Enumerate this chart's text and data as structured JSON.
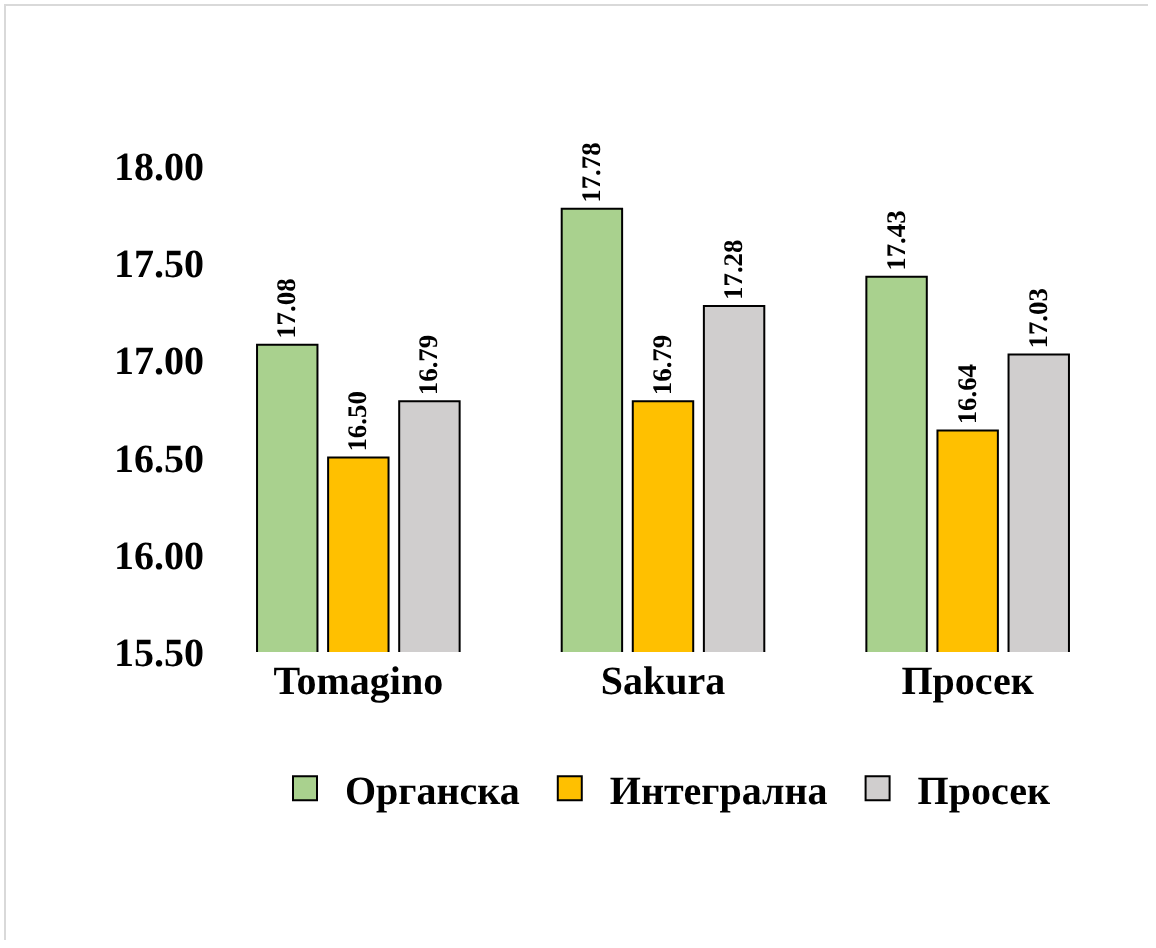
{
  "chart_data": {
    "type": "bar",
    "categories": [
      "Tomagino",
      "Sakura",
      "Просек"
    ],
    "series": [
      {
        "name": "Органска",
        "color": "#a9d18e",
        "values": [
          17.08,
          17.78,
          17.43
        ],
        "value_labels": [
          "17.08",
          "17.78",
          "17.43"
        ]
      },
      {
        "name": "Интегрална",
        "color": "#ffc000",
        "values": [
          16.5,
          16.79,
          16.64
        ],
        "value_labels": [
          "16.50",
          "16.79",
          "16.64"
        ]
      },
      {
        "name": "Просек",
        "color": "#d0cece",
        "values": [
          16.79,
          17.28,
          17.03
        ],
        "value_labels": [
          "16.79",
          "17.28",
          "17.03"
        ]
      }
    ],
    "ylim": [
      15.5,
      18
    ],
    "yticks": [
      {
        "value": 15.5,
        "label": "15.50"
      },
      {
        "value": 16,
        "label": "16.00"
      },
      {
        "value": 16.5,
        "label": "16.50"
      },
      {
        "value": 17,
        "label": "17.00"
      },
      {
        "value": 17.5,
        "label": "17.50"
      },
      {
        "value": 18,
        "label": "18.00"
      }
    ],
    "grid": false,
    "legend": "bottom"
  }
}
